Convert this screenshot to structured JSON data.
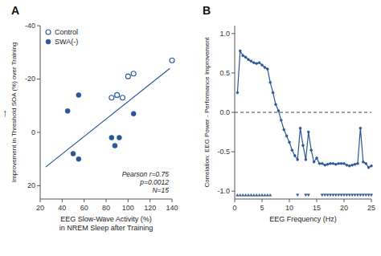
{
  "chart_data": [
    {
      "type": "scatter",
      "title": "A",
      "xlabel": "EEG Slow-Wave Activity (%)\nin NREM Sleep after Training",
      "ylabel": "Improvement in Threshold SOA (%) over Training",
      "annotations": [
        {
          "text": "↑"
        },
        {
          "text": "Pearson r=0.75\np=0.0012\nN=15"
        }
      ],
      "series": [
        {
          "name": "Control",
          "type": "scatter",
          "marker": "circle-open",
          "x": [
            85,
            90,
            95,
            100,
            105,
            140
          ],
          "values": [
            -13,
            -14,
            -13,
            -21,
            -22,
            -27
          ]
        },
        {
          "name": "SWA(-)",
          "type": "scatter",
          "marker": "circle",
          "x": [
            45,
            50,
            55,
            55,
            85,
            88,
            92,
            105
          ],
          "values": [
            -8,
            8,
            -14,
            10,
            2,
            5,
            2,
            -7
          ]
        },
        {
          "type": "line",
          "x": [
            25,
            138
          ],
          "values": [
            13,
            -24
          ]
        }
      ],
      "xlim": [
        20,
        140
      ],
      "ylim": [
        25,
        -40
      ],
      "xticks": [
        20,
        40,
        60,
        80,
        100,
        120,
        140
      ],
      "yticks": [
        -40,
        -20,
        0,
        20
      ],
      "grid": false,
      "legend": "upper left"
    },
    {
      "type": "line",
      "title": "B",
      "xlabel": "EEG Frequency (Hz)",
      "ylabel": "Correlation: EEG Power - Performance Improvement",
      "series": [
        {
          "type": "line",
          "marker": "circle",
          "x": [
            0.5,
            1.0,
            1.5,
            2.0,
            2.5,
            3.0,
            3.5,
            4.0,
            4.5,
            5.0,
            5.5,
            6.0,
            6.5,
            7.0,
            7.5,
            8.0,
            8.5,
            9.0,
            9.5,
            10.0,
            10.5,
            11.0,
            11.5,
            12.0,
            12.5,
            13.0,
            13.5,
            14.0,
            14.5,
            15.0,
            15.5,
            16.0,
            16.5,
            17.0,
            17.5,
            18.0,
            18.5,
            19.0,
            19.5,
            20.0,
            20.5,
            21.0,
            21.5,
            22.0,
            22.5,
            23.0,
            23.5,
            24.0,
            24.5,
            25.0
          ],
          "values": [
            0.25,
            0.78,
            0.72,
            0.7,
            0.67,
            0.65,
            0.63,
            0.62,
            0.63,
            0.6,
            0.57,
            0.55,
            0.38,
            0.25,
            0.1,
            0.02,
            -0.1,
            -0.22,
            -0.3,
            -0.38,
            -0.48,
            -0.55,
            -0.6,
            -0.2,
            -0.42,
            -0.6,
            -0.25,
            -0.48,
            -0.63,
            -0.58,
            -0.65,
            -0.65,
            -0.67,
            -0.66,
            -0.65,
            -0.65,
            -0.66,
            -0.65,
            -0.65,
            -0.65,
            -0.67,
            -0.68,
            -0.67,
            -0.66,
            -0.65,
            -0.2,
            -0.63,
            -0.65,
            -0.7,
            -0.68
          ]
        },
        {
          "type": "hline",
          "line_style": "dashed",
          "values": [
            0
          ]
        },
        {
          "type": "scatter",
          "marker": "triangle-up",
          "x": [
            0.5,
            1.0,
            1.5,
            2.0,
            2.5,
            3.0,
            3.5,
            4.0,
            4.5,
            5.0,
            5.5,
            6.0,
            6.5
          ],
          "values": [
            -1.05,
            -1.05,
            -1.05,
            -1.05,
            -1.05,
            -1.05,
            -1.05,
            -1.05,
            -1.05,
            -1.05,
            -1.05,
            -1.05,
            -1.05
          ]
        },
        {
          "type": "scatter",
          "marker": "triangle-down",
          "x": [
            11.5,
            13.0,
            13.5,
            16.0,
            16.5,
            17.0,
            17.5,
            18.0,
            18.5,
            19.0,
            19.5,
            20.0,
            20.5,
            21.0,
            21.5,
            22.0,
            22.5,
            23.0,
            23.5,
            24.0,
            24.5,
            25.0
          ],
          "values": [
            -1.05,
            -1.05,
            -1.05,
            -1.05,
            -1.05,
            -1.05,
            -1.05,
            -1.05,
            -1.05,
            -1.05,
            -1.05,
            -1.05,
            -1.05,
            -1.05,
            -1.05,
            -1.05,
            -1.05,
            -1.05,
            -1.05,
            -1.05,
            -1.05,
            -1.05
          ]
        }
      ],
      "xlim": [
        0,
        25
      ],
      "ylim": [
        -1.1,
        1.1
      ],
      "xticks": [
        0,
        5,
        10,
        15,
        20,
        25
      ],
      "yticks": [
        {
          "value": -1.0,
          "label": "-1.0"
        },
        {
          "value": -0.5,
          "label": "-0.5"
        },
        {
          "value": 0.0,
          "label": "0.0"
        },
        0.5,
        {
          "value": 1.0,
          "label": "1.0"
        }
      ],
      "grid": false
    }
  ]
}
